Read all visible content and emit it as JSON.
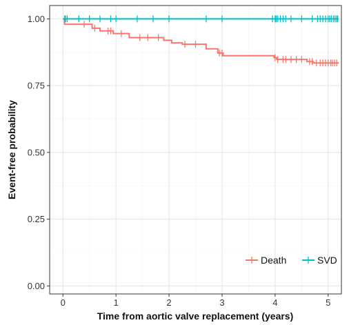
{
  "chart_data": {
    "type": "line",
    "chart_subtype": "kaplan-meier step",
    "xlabel": "Time from aortic valve replacement (years)",
    "ylabel": "Event-free probability",
    "xlim": [
      -0.25,
      5.25
    ],
    "ylim": [
      -0.03,
      1.05
    ],
    "x_ticks": [
      0,
      1,
      2,
      3,
      4,
      5
    ],
    "x_tick_labels": [
      "0",
      "1",
      "2",
      "3",
      "4",
      "5"
    ],
    "y_ticks": [
      0.0,
      0.25,
      0.5,
      0.75,
      1.0
    ],
    "y_tick_labels": [
      "0.00",
      "0.25",
      "0.50",
      "0.75",
      "1.00"
    ],
    "grid": true,
    "legend_position": "bottom-right",
    "series": [
      {
        "name": "Death",
        "color": "#F8766D",
        "steps": [
          [
            0.0,
            1.0
          ],
          [
            0.03,
            0.98
          ],
          [
            0.18,
            0.98
          ],
          [
            0.55,
            0.965
          ],
          [
            0.7,
            0.955
          ],
          [
            0.95,
            0.945
          ],
          [
            1.25,
            0.93
          ],
          [
            1.9,
            0.92
          ],
          [
            2.05,
            0.91
          ],
          [
            2.25,
            0.905
          ],
          [
            2.7,
            0.888
          ],
          [
            2.92,
            0.872
          ],
          [
            3.02,
            0.862
          ],
          [
            3.98,
            0.855
          ],
          [
            4.03,
            0.848
          ],
          [
            4.6,
            0.84
          ],
          [
            4.72,
            0.835
          ],
          [
            5.2,
            0.835
          ]
        ],
        "censor_times": [
          0.4,
          0.6,
          0.85,
          0.9,
          1.1,
          1.45,
          1.6,
          1.8,
          2.3,
          2.5,
          2.95,
          3.0,
          4.0,
          4.05,
          4.15,
          4.2,
          4.3,
          4.4,
          4.5,
          4.65,
          4.7,
          4.78,
          4.85,
          4.9,
          4.95,
          5.0,
          5.05,
          5.08,
          5.12,
          5.16
        ]
      },
      {
        "name": "SVD",
        "color": "#00BFC4",
        "steps": [
          [
            0.0,
            1.0
          ],
          [
            5.2,
            1.0
          ]
        ],
        "censor_times": [
          0.03,
          0.05,
          0.08,
          0.3,
          0.5,
          0.7,
          0.9,
          1.0,
          1.4,
          1.7,
          2.0,
          2.7,
          3.0,
          3.95,
          4.0,
          4.02,
          4.05,
          4.1,
          4.15,
          4.2,
          4.3,
          4.5,
          4.7,
          4.8,
          4.85,
          4.9,
          4.95,
          5.0,
          5.03,
          5.06,
          5.1,
          5.13,
          5.16,
          5.18
        ]
      }
    ]
  }
}
